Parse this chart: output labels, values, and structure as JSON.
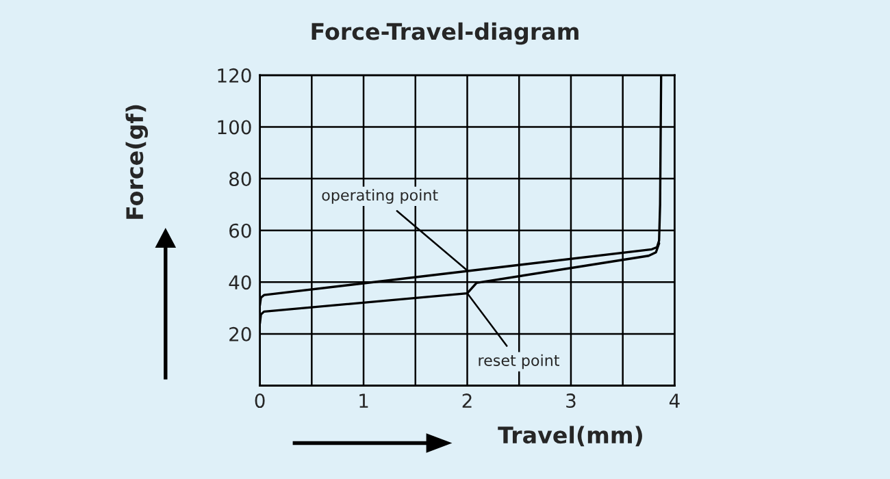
{
  "chart_data": {
    "type": "line",
    "title": "Force-Travel-diagram",
    "xlabel": "Travel(mm)",
    "ylabel": "Force(gf)",
    "series": [
      {
        "color": "#000000",
        "x": [
          0,
          0.01,
          0.04,
          3.78,
          3.83,
          3.85,
          3.86,
          3.87
        ],
        "values": [
          31,
          34,
          35,
          52.7,
          53.5,
          56,
          70,
          120
        ]
      },
      {
        "color": "#000000",
        "x": [
          0,
          0.01,
          0.04,
          2.0,
          2.09,
          3.75,
          3.82,
          3.85
        ],
        "values": [
          24,
          27.5,
          28.6,
          35.7,
          39.7,
          50.2,
          51.5,
          55
        ]
      }
    ],
    "annotations": [
      {
        "text": "operating point",
        "x": 2.0,
        "y": 44.5
      },
      {
        "text": "reset point",
        "x": 2.0,
        "y": 35.7
      }
    ],
    "xlim": [
      0,
      4
    ],
    "ylim": [
      0,
      120
    ],
    "xticks": [
      0,
      {
        "value": 0.5,
        "label": null
      },
      1,
      {
        "value": 1.5,
        "label": null
      },
      2,
      {
        "value": 2.5,
        "label": null
      },
      3,
      {
        "value": 3.5,
        "label": null
      },
      4
    ],
    "yticks": [
      {
        "value": 0,
        "label": null
      },
      20,
      40,
      60,
      80,
      100,
      120
    ],
    "grid": true,
    "marker": "none",
    "line_style": "solid"
  }
}
